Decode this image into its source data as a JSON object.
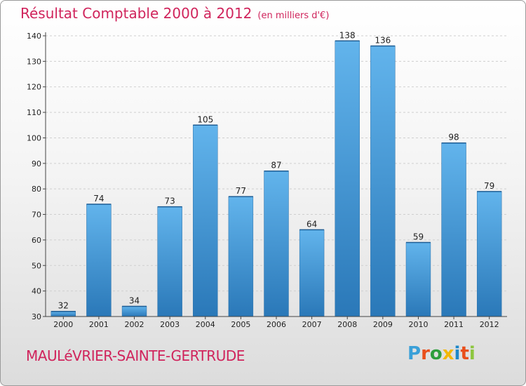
{
  "title": "Résultat Comptable 2000 à 2012",
  "unit": "(en milliers d'€)",
  "town": "MAULéVRIER-SAINTE-GERTRUDE",
  "logo": {
    "text": "Proxiti",
    "colors": [
      "#3aa0d8",
      "#e94e1b",
      "#2e9e3c",
      "#f2b705",
      "#1e88c8",
      "#e94e1b",
      "#8dc63f"
    ]
  },
  "colors": {
    "accent": "#d0245c",
    "bar_light": "#5eb0e8",
    "bar_dark": "#2a78b8"
  },
  "chart_data": {
    "type": "bar",
    "title": "Résultat Comptable 2000 à 2012",
    "xlabel": "",
    "ylabel": "",
    "categories": [
      "2000",
      "2001",
      "2002",
      "2003",
      "2004",
      "2005",
      "2006",
      "2007",
      "2008",
      "2009",
      "2010",
      "2011",
      "2012"
    ],
    "values": [
      32,
      74,
      34,
      73,
      105,
      77,
      87,
      64,
      138,
      136,
      59,
      98,
      79
    ],
    "ylim": [
      30,
      140
    ],
    "yticks": [
      30,
      40,
      50,
      60,
      70,
      80,
      90,
      100,
      110,
      120,
      130,
      140
    ],
    "grid": true
  }
}
